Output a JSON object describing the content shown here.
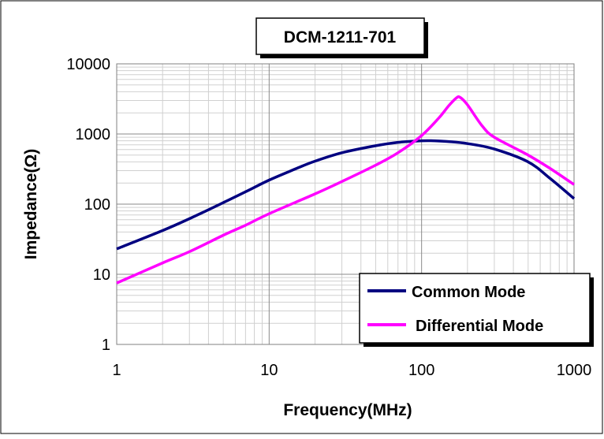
{
  "chart_data": {
    "type": "line",
    "title": "DCM-1211-701",
    "xlabel": "Frequency(MHz)",
    "ylabel": "Impedance(Ω)",
    "x_scale": "log",
    "y_scale": "log",
    "xlim": [
      1,
      1000
    ],
    "ylim": [
      1,
      10000
    ],
    "x_ticks": [
      "1",
      "10",
      "100",
      "1000"
    ],
    "y_ticks": [
      "1",
      "10",
      "100",
      "1000",
      "10000"
    ],
    "grid": true,
    "legend_position": "bottom-right",
    "series": [
      {
        "name": "Common Mode",
        "color": "#000080",
        "x": [
          1,
          2,
          3,
          5,
          7,
          10,
          15,
          20,
          30,
          50,
          70,
          100,
          120,
          150,
          200,
          300,
          500,
          700,
          1000
        ],
        "y": [
          23,
          42,
          62,
          105,
          150,
          220,
          320,
          410,
          540,
          680,
          760,
          800,
          800,
          780,
          730,
          610,
          400,
          230,
          120
        ]
      },
      {
        "name": "Differential Mode",
        "color": "#ff00ff",
        "x": [
          1,
          2,
          3,
          5,
          7,
          10,
          20,
          30,
          50,
          70,
          100,
          130,
          150,
          170,
          180,
          200,
          250,
          300,
          500,
          700,
          1000
        ],
        "y": [
          7.5,
          14.5,
          21,
          36,
          50,
          73,
          140,
          210,
          360,
          540,
          950,
          1700,
          2500,
          3300,
          3300,
          2600,
          1300,
          900,
          500,
          320,
          190
        ]
      }
    ]
  }
}
